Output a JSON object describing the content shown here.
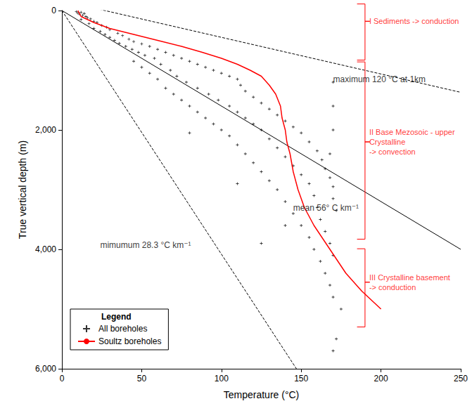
{
  "chart_data": {
    "type": "scatter",
    "xlabel": "Temperature (°C)",
    "ylabel": "True vertical depth (m)",
    "xlim": [
      0,
      250
    ],
    "ylim": [
      0,
      6000
    ],
    "xticks": [
      0,
      50,
      100,
      150,
      200,
      250
    ],
    "yticks": [
      0,
      2000,
      4000,
      6000
    ],
    "grid": false,
    "legend": "lower left",
    "legend_title": "Legend",
    "series": [
      {
        "name": "All boreholes",
        "type": "scatter",
        "marker": "plus",
        "color": "#000000",
        "x": [
          9,
          10,
          11,
          12,
          13,
          14,
          15,
          16,
          12,
          18,
          20,
          22,
          17,
          25,
          28,
          20,
          30,
          24,
          35,
          27,
          38,
          30,
          42,
          33,
          45,
          36,
          50,
          40,
          55,
          44,
          60,
          48,
          65,
          52,
          70,
          58,
          75,
          45,
          80,
          62,
          85,
          50,
          90,
          68,
          95,
          55,
          100,
          72,
          105,
          60,
          110,
          78,
          112,
          65,
          85,
          115,
          70,
          92,
          120,
          75,
          98,
          125,
          80,
          105,
          130,
          85,
          110,
          135,
          90,
          115,
          140,
          95,
          120,
          145,
          100,
          125,
          150,
          80,
          105,
          130,
          155,
          110,
          135,
          160,
          115,
          140,
          163,
          120,
          145,
          165,
          125,
          150,
          168,
          130,
          155,
          170,
          135,
          158,
          170,
          140,
          160,
          172,
          145,
          162,
          150,
          165,
          155,
          168,
          158,
          170,
          162,
          165,
          168,
          170,
          175,
          172,
          170,
          170,
          170,
          170,
          168,
          125,
          140,
          110
        ],
        "values": [
          20,
          40,
          60,
          30,
          80,
          50,
          100,
          120,
          150,
          140,
          180,
          200,
          220,
          250,
          280,
          300,
          320,
          350,
          380,
          400,
          420,
          450,
          480,
          500,
          520,
          550,
          560,
          600,
          600,
          650,
          650,
          700,
          700,
          750,
          750,
          800,
          800,
          850,
          850,
          900,
          900,
          950,
          950,
          1000,
          1000,
          1050,
          1050,
          1100,
          1100,
          1150,
          1150,
          1200,
          1250,
          1300,
          1300,
          1350,
          1400,
          1400,
          1450,
          1500,
          1500,
          1550,
          1600,
          1600,
          1650,
          1700,
          1700,
          1750,
          1800,
          1800,
          1850,
          1900,
          1900,
          1950,
          2000,
          2000,
          2050,
          2050,
          2100,
          2150,
          2200,
          2250,
          2300,
          2350,
          2400,
          2450,
          2500,
          2550,
          2600,
          2650,
          2700,
          2750,
          2800,
          2850,
          2900,
          2950,
          3000,
          3100,
          3150,
          3200,
          3300,
          3350,
          3400,
          3500,
          3600,
          3700,
          3800,
          3900,
          4000,
          4100,
          4200,
          4400,
          4600,
          4800,
          5000,
          5500,
          5700,
          1200,
          1600,
          2000,
          2400,
          3900,
          3600,
          2900
        ]
      },
      {
        "name": "Soultz boreholes",
        "type": "line",
        "line_style": "solid",
        "color": "#ff0000",
        "x": [
          10,
          12,
          20,
          30,
          45,
          60,
          75,
          88,
          100,
          110,
          118,
          125,
          130,
          134,
          137,
          138,
          140,
          141,
          143,
          145,
          148,
          152,
          158,
          168,
          178,
          188,
          200
        ],
        "values": [
          0,
          100,
          200,
          300,
          400,
          500,
          600,
          700,
          800,
          900,
          1000,
          1100,
          1250,
          1400,
          1600,
          1800,
          2000,
          2200,
          2400,
          2700,
          3000,
          3300,
          3600,
          4000,
          4400,
          4700,
          5000
        ]
      }
    ],
    "lines": [
      {
        "x": [
          0,
          250
        ],
        "values": [
          -165,
          1370
        ],
        "line_style": "dashed",
        "color": "#000000"
      },
      {
        "x": [
          0,
          250
        ],
        "values": [
          0,
          4000
        ],
        "line_style": "solid",
        "color": "#000000"
      },
      {
        "x": [
          0,
          147
        ],
        "values": [
          0,
          6000
        ],
        "line_style": "dashed",
        "color": "#000000"
      }
    ],
    "annotations": [
      {
        "text": "I Sediments -> conduction",
        "x": 190,
        "y": 180,
        "range": [
          -110,
          830
        ],
        "color": "#ff0000"
      },
      {
        "text": "maximum 120 °C at 1km",
        "x": 170,
        "y": 1150,
        "color": "#000000"
      },
      {
        "text": "II Base Mezosoic - upper Crystalline\n-> convection",
        "x": 190,
        "y": 2200,
        "range": [
          860,
          3830
        ],
        "color": "#ff0000"
      },
      {
        "text": "mean 56° C km⁻¹",
        "x": 145,
        "y": 3300,
        "color": "#000000"
      },
      {
        "text": "mimumum 28.3 °C km⁻¹",
        "x": 24,
        "y": 3935,
        "color": "#000000"
      },
      {
        "text": "III Crystalline basement\n-> conduction",
        "x": 190,
        "y": 4550,
        "range": [
          3990,
          5300
        ],
        "color": "#ff0000"
      }
    ]
  }
}
